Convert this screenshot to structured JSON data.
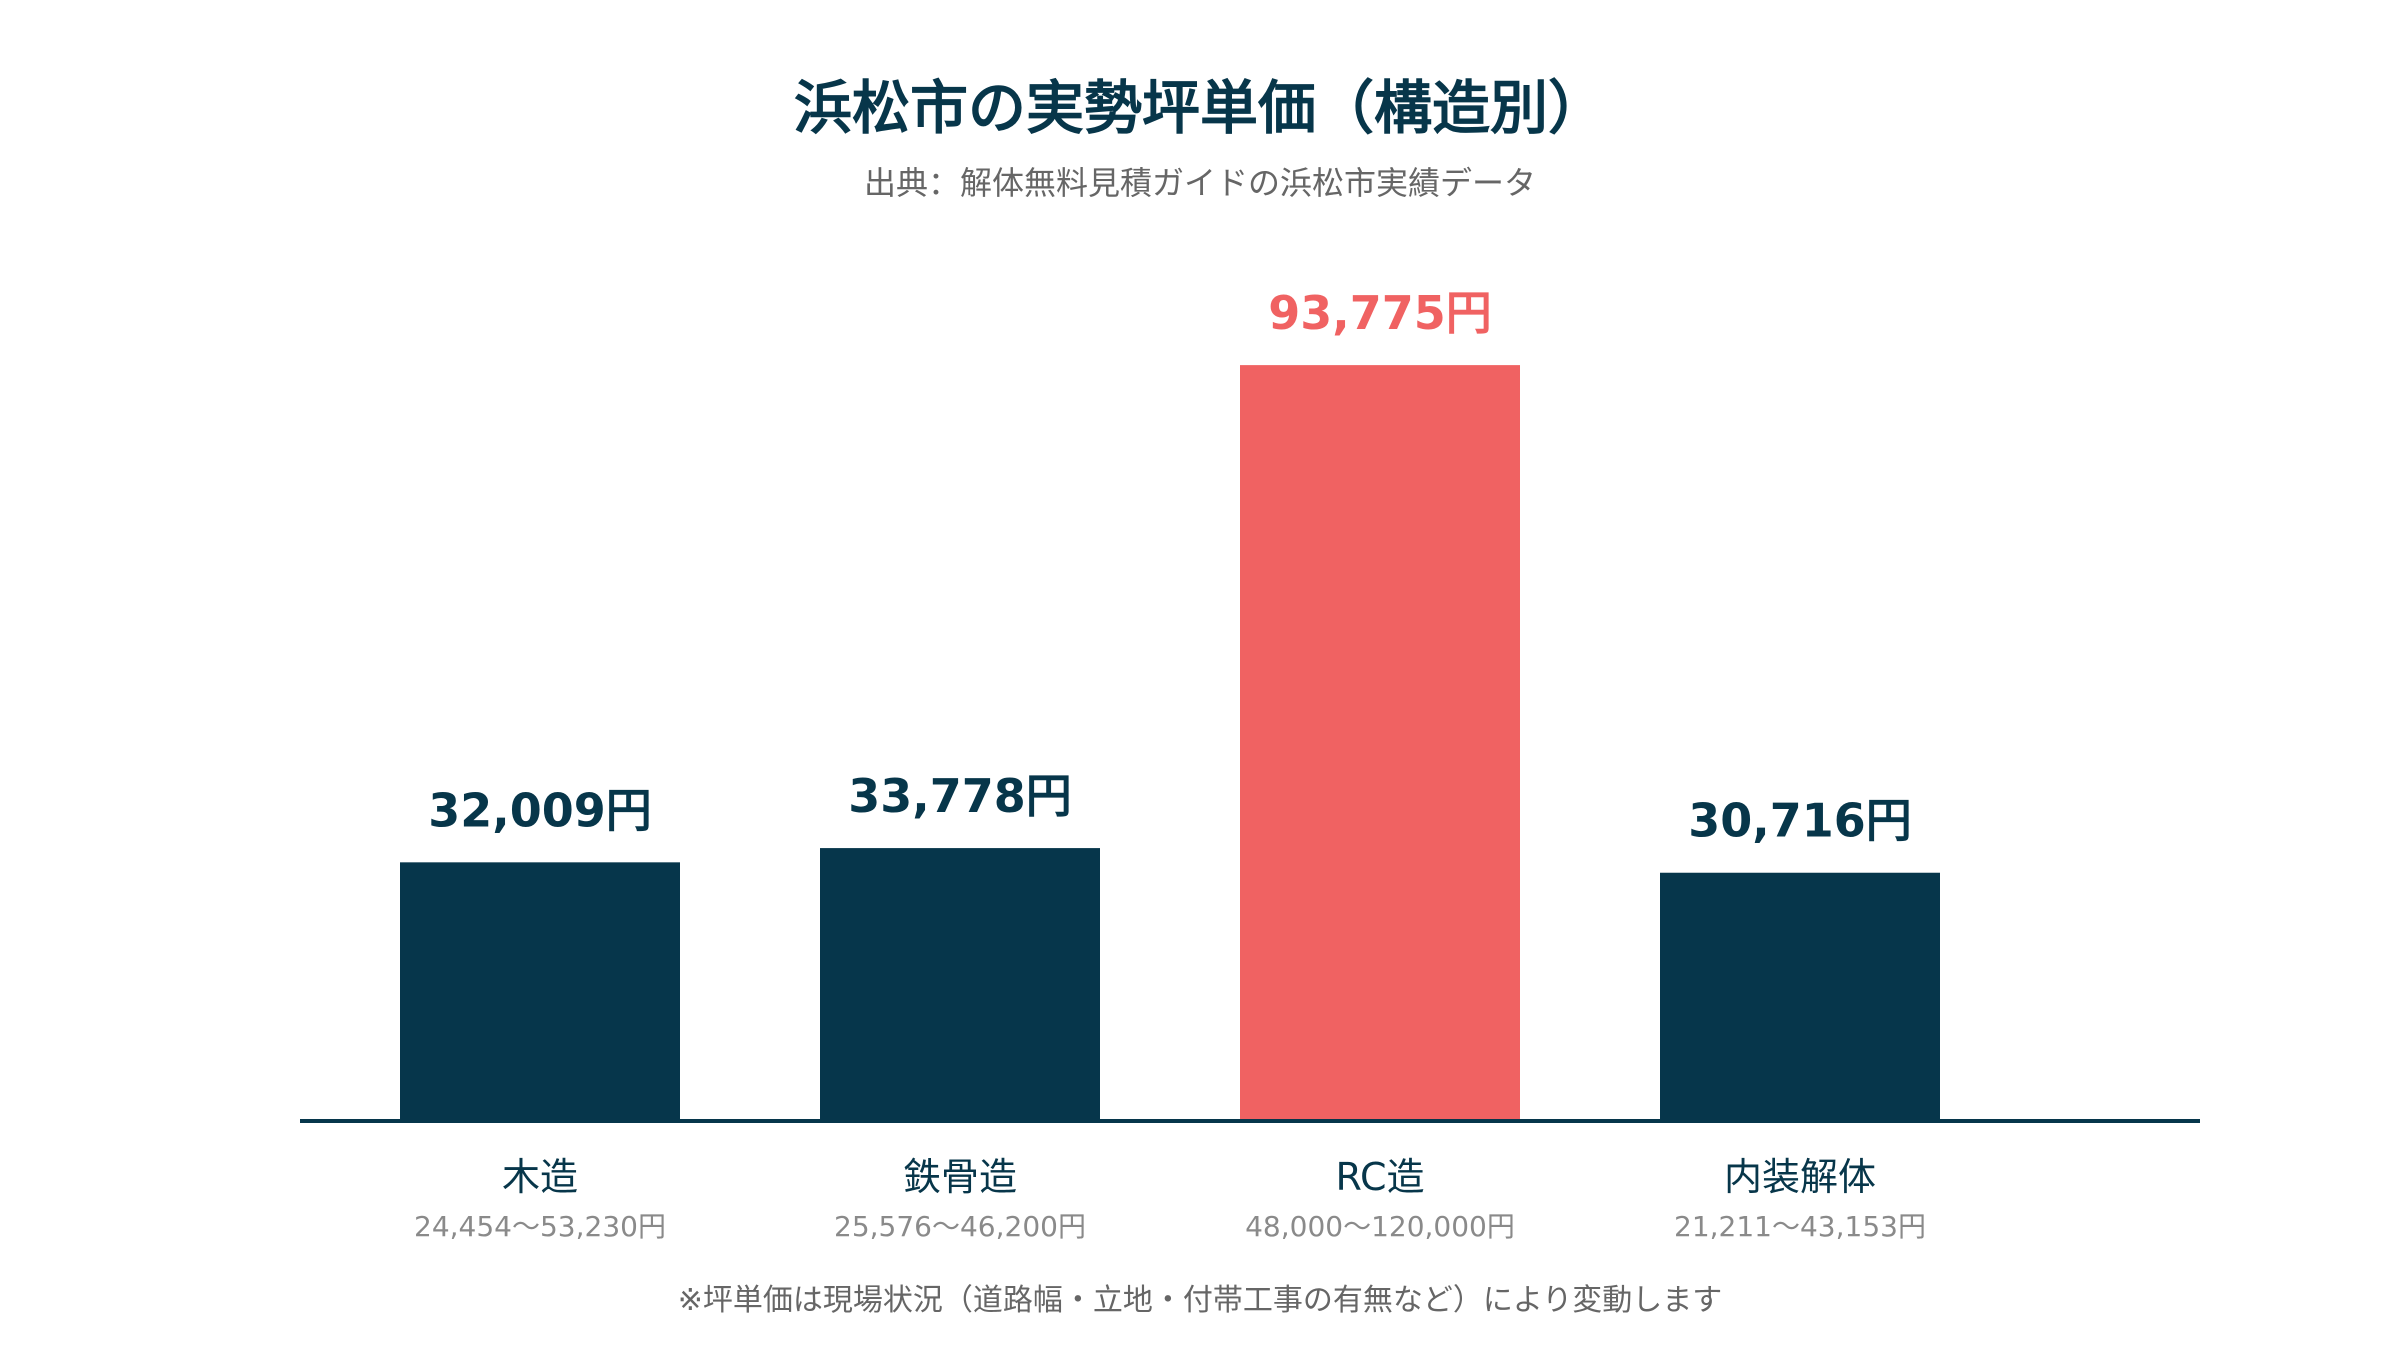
{
  "chart_data": {
    "type": "bar",
    "title": "浜松市の実勢坪単価（構造別）",
    "subtitle": "出典：解体無料見積ガイドの浜松市実績データ",
    "categories": [
      "木造",
      "鉄骨造",
      "RC造",
      "内装解体"
    ],
    "values": [
      32009,
      33778,
      93775,
      30716
    ],
    "value_labels": [
      "32,009円",
      "33,778円",
      "93,775円",
      "30,716円"
    ],
    "ranges": [
      "24,454〜53,230円",
      "25,576〜46,200円",
      "48,000〜120,000円",
      "21,211〜43,153円"
    ],
    "highlight_index": 2,
    "ylim": [
      0,
      100000
    ],
    "grid": false,
    "note": "※坪単価は現場状況（道路幅・立地・付帯工事の有無など）により変動します"
  },
  "colors": {
    "bar": "#06364b",
    "highlight": "#f06262",
    "axis": "#06364b",
    "label": "#07364a"
  }
}
